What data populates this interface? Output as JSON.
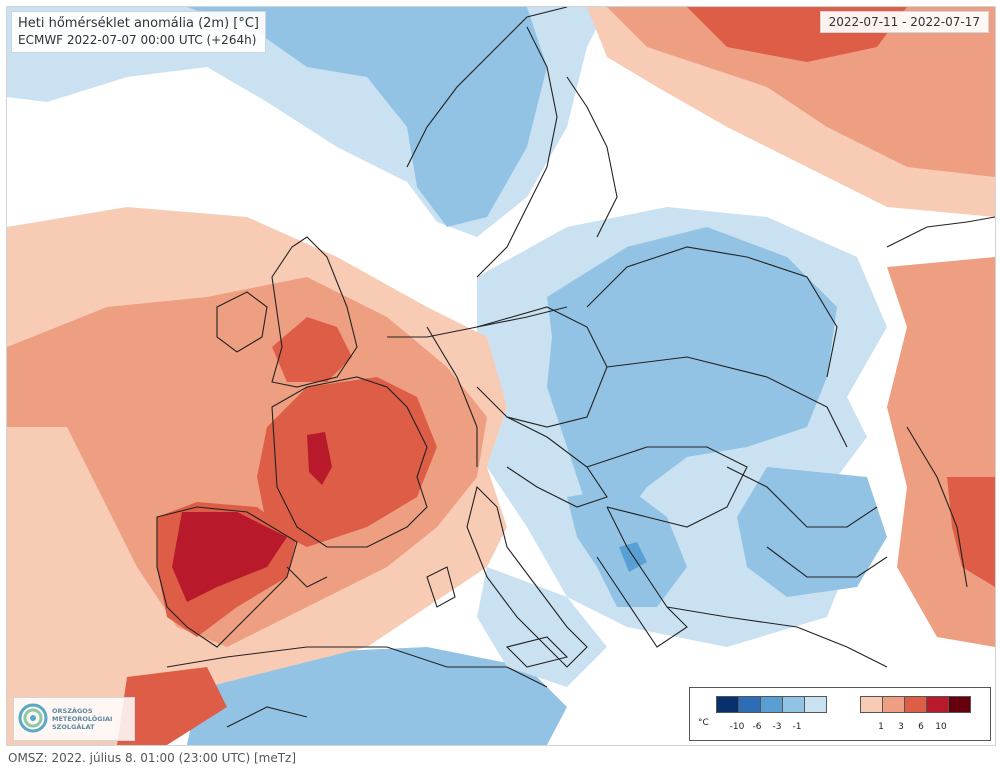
{
  "map": {
    "title": "Heti hőmérséklet anomália (2m) [°C]",
    "model_run": "ECMWF 2022-07-07 00:00 UTC (+264h)",
    "date_range": "2022-07-11 - 2022-07-17",
    "colors": {
      "neutral": "#ffffff",
      "cold_1": "#c9e1f1",
      "cold_3": "#93c3e4",
      "cold_6": "#5a9fd3",
      "cold_10": "#2c6db5",
      "cold_max": "#08306b",
      "warm_1": "#f8cbb4",
      "warm_3": "#ee9f82",
      "warm_6": "#dd5d47",
      "warm_10": "#b8192b",
      "warm_max": "#67000d",
      "border": "#222222"
    }
  },
  "logo": {
    "line1": "ORSZÁGOS",
    "line2": "METEOROLÓGIAI",
    "line3": "SZOLGÁLAT",
    "icon": "omsz-logo-icon"
  },
  "legend": {
    "unit": "°C",
    "cold_colors": [
      "#08306b",
      "#2c6db5",
      "#5a9fd3",
      "#93c3e4",
      "#c9e1f1"
    ],
    "warm_colors": [
      "#f8cbb4",
      "#ee9f82",
      "#dd5d47",
      "#b8192b",
      "#67000d"
    ],
    "cold_labels": [
      "-10",
      "-6",
      "-3",
      "-1"
    ],
    "warm_labels": [
      "1",
      "3",
      "6",
      "10"
    ]
  },
  "footer": {
    "text": "OMSZ: 2022. július 8. 01:00 (23:00  UTC)  [meTz]"
  }
}
